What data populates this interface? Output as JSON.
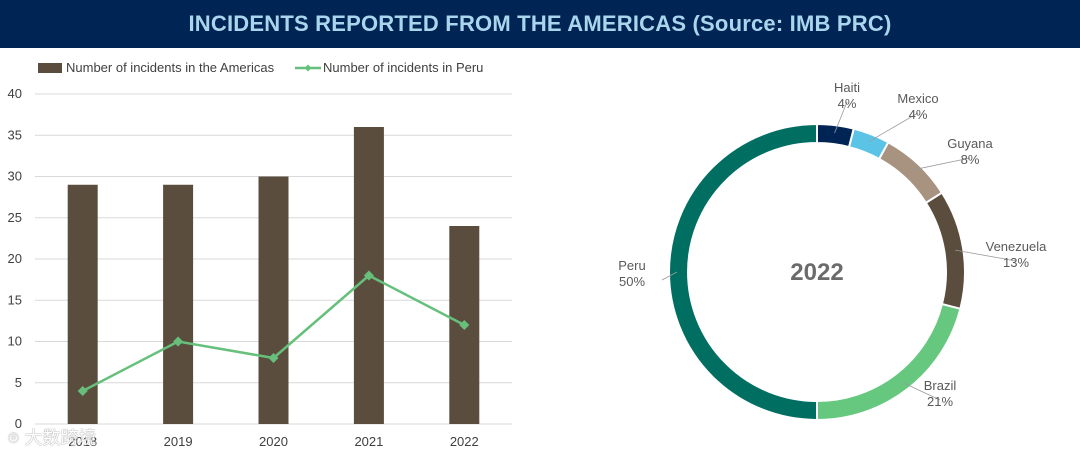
{
  "header": {
    "title": "INCIDENTS REPORTED FROM THE AMERICAS (Source: IMB PRC)"
  },
  "colors": {
    "banner": "#002554",
    "bar": "#5b4d3e",
    "line": "#66c07c",
    "grid": "#d9d9d9"
  },
  "watermark": {
    "text": "大数跨境"
  },
  "chart_data": [
    {
      "type": "bar",
      "title": "",
      "categories": [
        "2018",
        "2019",
        "2020",
        "2021",
        "2022"
      ],
      "series": [
        {
          "name": "Number of incidents in the Americas",
          "type": "bar",
          "color": "#5b4d3e",
          "values": [
            29,
            29,
            30,
            36,
            24
          ]
        },
        {
          "name": "Number of incidents in Peru",
          "type": "line",
          "color": "#66c07c",
          "values": [
            4,
            10,
            8,
            18,
            12
          ]
        }
      ],
      "yticks": [
        "0",
        "5",
        "10",
        "15",
        "20",
        "25",
        "30",
        "35",
        "40"
      ],
      "ylim": [
        0,
        40
      ],
      "xlabel": "",
      "ylabel": "",
      "grid": true,
      "legend": "top-left"
    },
    {
      "type": "pie",
      "subtype": "donut",
      "center_label": "2022",
      "slices": [
        {
          "label": "Haiti",
          "value": 4,
          "pct": "4%",
          "color": "#002554"
        },
        {
          "label": "Mexico",
          "value": 4,
          "pct": "4%",
          "color": "#5bc4e6"
        },
        {
          "label": "Guyana",
          "value": 8,
          "pct": "8%",
          "color": "#a89280"
        },
        {
          "label": "Venezuela",
          "value": 13,
          "pct": "13%",
          "color": "#5b4d3e"
        },
        {
          "label": "Brazil",
          "value": 21,
          "pct": "21%",
          "color": "#66c87e"
        },
        {
          "label": "Peru",
          "value": 50,
          "pct": "50%",
          "color": "#006f62"
        }
      ]
    }
  ]
}
